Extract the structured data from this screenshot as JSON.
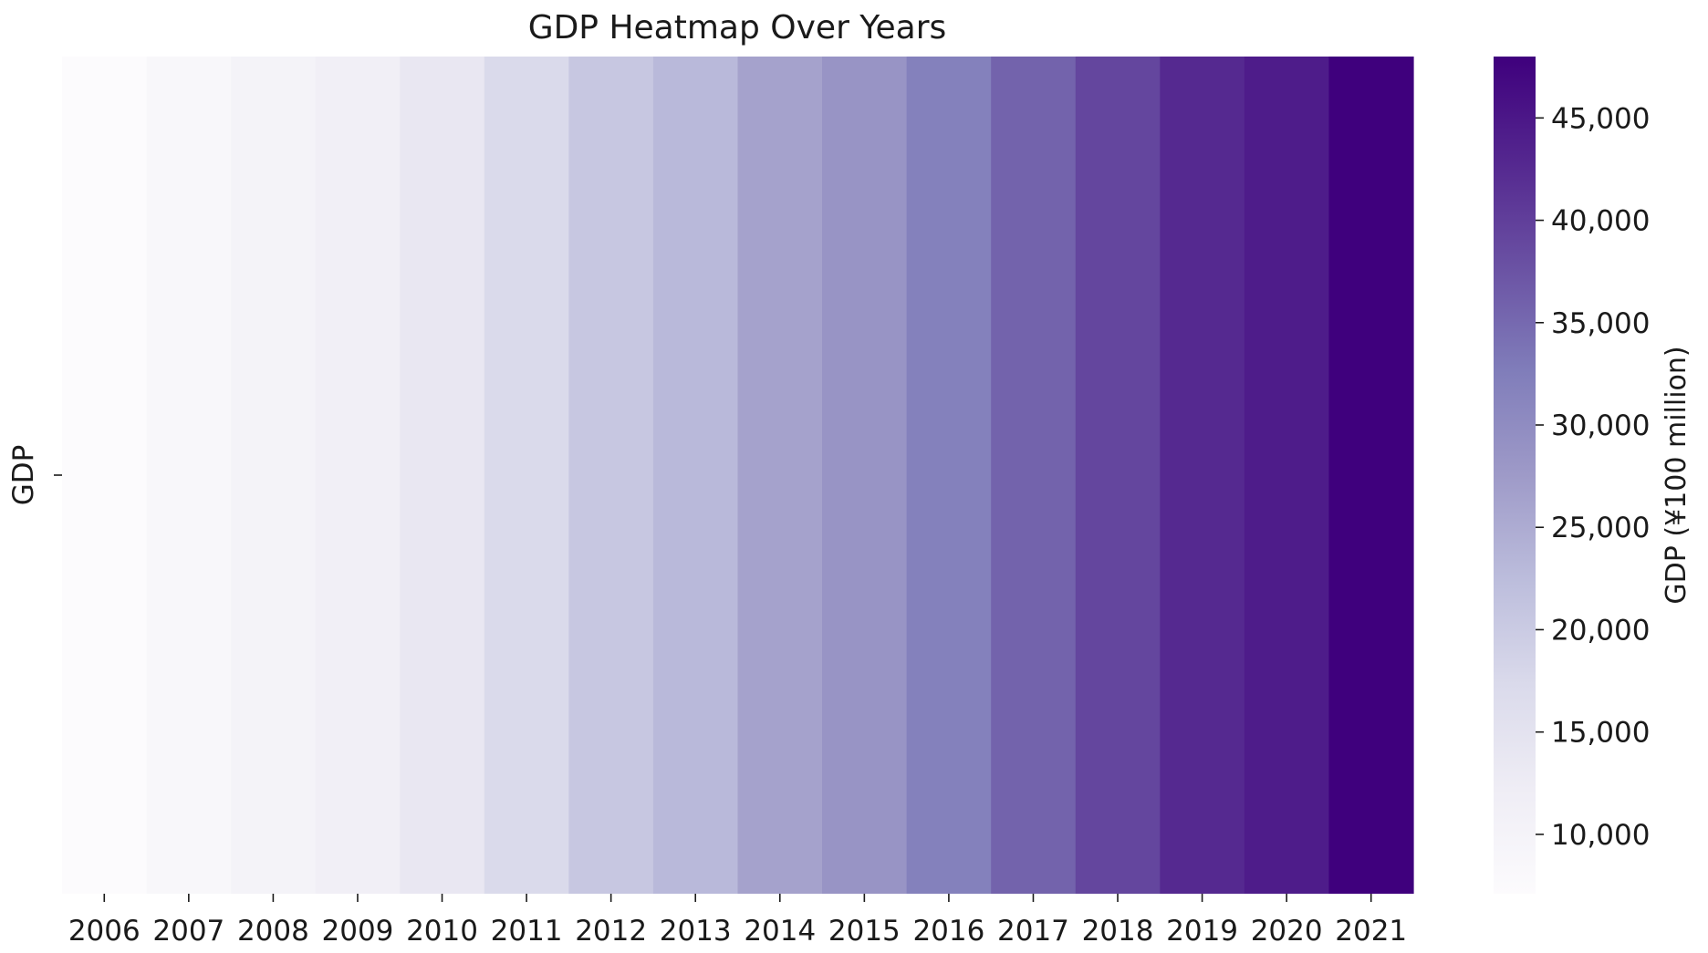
{
  "chart_data": {
    "type": "heatmap",
    "title": "GDP Heatmap Over Years",
    "xlabel": "",
    "ylabel": "",
    "rows": [
      "GDP"
    ],
    "categories": [
      "2006",
      "2007",
      "2008",
      "2009",
      "2010",
      "2011",
      "2012",
      "2013",
      "2014",
      "2015",
      "2016",
      "2017",
      "2018",
      "2019",
      "2020",
      "2021"
    ],
    "values": [
      [
        7100,
        8700,
        10100,
        11500,
        13700,
        17300,
        20600,
        23000,
        26400,
        28600,
        31900,
        35700,
        39100,
        42700,
        44300,
        48000
      ]
    ],
    "colormap": "Purples",
    "colorbar": {
      "label": "GDP (¥100 million)",
      "vmin": 7100,
      "vmax": 48000,
      "ticks": [
        10000,
        15000,
        20000,
        25000,
        30000,
        35000,
        40000,
        45000
      ],
      "tick_labels": [
        "10,000",
        "15,000",
        "20,000",
        "25,000",
        "30,000",
        "35,000",
        "40,000",
        "45,000"
      ]
    },
    "color_stops": [
      "#fcfbfd",
      "#efedf5",
      "#dadaeb",
      "#bcbddc",
      "#9e9ac8",
      "#807dba",
      "#6a51a3",
      "#54278f",
      "#3f007d"
    ]
  }
}
